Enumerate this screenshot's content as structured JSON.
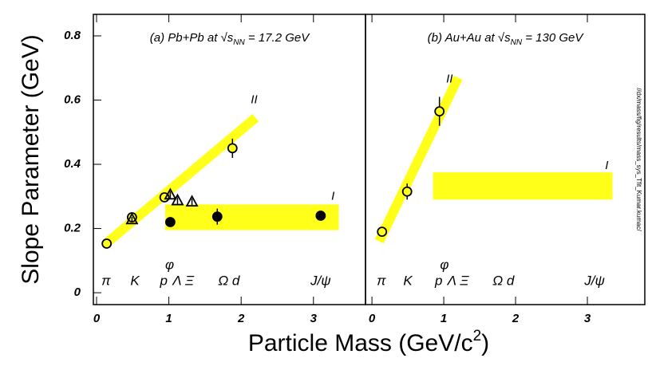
{
  "y_label": "Slope Parameter (GeV)",
  "x_label_parts": [
    "Particle Mass (GeV/c",
    "2",
    ")"
  ],
  "side_note": "//dx/mass/fig/results/mass_sys_Tfit_Kumar.kumac/",
  "chart_data": [
    {
      "type": "scatter",
      "title_parts": [
        "(a) Pb+Pb at √",
        "s",
        "NN",
        " = 17.2 GeV"
      ],
      "xlim": [
        -0.044,
        3.72
      ],
      "ylim": [
        -0.037,
        0.867
      ],
      "xticks": [
        0,
        1,
        2,
        3
      ],
      "yticks": [
        0,
        0.2,
        0.4,
        0.6,
        0.8
      ],
      "series": [
        {
          "name": "open circles",
          "marker": "circle-open",
          "x": [
            0.14,
            0.49,
            0.94,
            1.88
          ],
          "values": [
            0.153,
            0.235,
            0.297,
            0.45
          ],
          "errors": [
            0.008,
            0.01,
            0.01,
            0.03
          ]
        },
        {
          "name": "open triangles",
          "marker": "triangle-open",
          "x": [
            0.49,
            1.02,
            1.12,
            1.32
          ],
          "values": [
            0.228,
            0.305,
            0.287,
            0.283
          ],
          "errors": [
            0.008,
            0.01,
            0.01,
            0.01
          ]
        },
        {
          "name": "filled circles",
          "marker": "circle-filled",
          "x": [
            1.02,
            1.67,
            3.1
          ],
          "values": [
            0.22,
            0.237,
            0.24
          ],
          "errors": [
            0.008,
            0.025,
            0.01
          ]
        }
      ],
      "bands": [
        {
          "label": "II",
          "shape": "diagonal",
          "x": [
            0.14,
            2.2
          ],
          "y": [
            0.155,
            0.545
          ],
          "thickness": 0.03,
          "label_at": [
            2.18,
            0.6
          ]
        },
        {
          "label": "I",
          "shape": "box",
          "x": [
            0.95,
            3.35
          ],
          "y": [
            0.195,
            0.275
          ],
          "label_at": [
            3.27,
            0.3
          ]
        }
      ],
      "particles": [
        {
          "text": "π",
          "x": 0.13,
          "y": 0.035
        },
        {
          "text": "K",
          "x": 0.53,
          "y": 0.035
        },
        {
          "text": "p",
          "x": 0.93,
          "y": 0.035
        },
        {
          "text": "φ",
          "x": 1.01,
          "y": 0.085
        },
        {
          "text": "Λ Ξ",
          "x": 1.2,
          "y": 0.035
        },
        {
          "text": "Ω d",
          "x": 1.83,
          "y": 0.035
        },
        {
          "text": "J/ψ",
          "x": 3.1,
          "y": 0.035
        }
      ]
    },
    {
      "type": "scatter",
      "title_parts": [
        "(b) Au+Au at √",
        "s",
        "NN",
        " = 130 GeV"
      ],
      "xlim": [
        -0.09,
        3.8
      ],
      "ylim": [
        -0.037,
        0.867
      ],
      "xticks": [
        0,
        1,
        2,
        3
      ],
      "series": [
        {
          "name": "open circles",
          "marker": "circle-open",
          "x": [
            0.14,
            0.49,
            0.94
          ],
          "values": [
            0.19,
            0.315,
            0.565
          ],
          "errors": [
            0.01,
            0.025,
            0.045
          ]
        }
      ],
      "bands": [
        {
          "label": "II",
          "shape": "diagonal",
          "x": [
            0.1,
            1.2
          ],
          "y": [
            0.16,
            0.67
          ],
          "thickness": 0.03,
          "label_at": [
            1.08,
            0.665
          ]
        },
        {
          "label": "I",
          "shape": "box",
          "x": [
            0.85,
            3.35
          ],
          "y": [
            0.29,
            0.375
          ],
          "label_at": [
            3.27,
            0.395
          ]
        }
      ],
      "particles": [
        {
          "text": "π",
          "x": 0.13,
          "y": 0.035
        },
        {
          "text": "K",
          "x": 0.5,
          "y": 0.035
        },
        {
          "text": "p",
          "x": 0.93,
          "y": 0.035
        },
        {
          "text": "φ",
          "x": 1.01,
          "y": 0.085
        },
        {
          "text": "Λ Ξ",
          "x": 1.2,
          "y": 0.035
        },
        {
          "text": "Ω d",
          "x": 1.83,
          "y": 0.035
        },
        {
          "text": "J/ψ",
          "x": 3.1,
          "y": 0.035
        }
      ]
    }
  ]
}
